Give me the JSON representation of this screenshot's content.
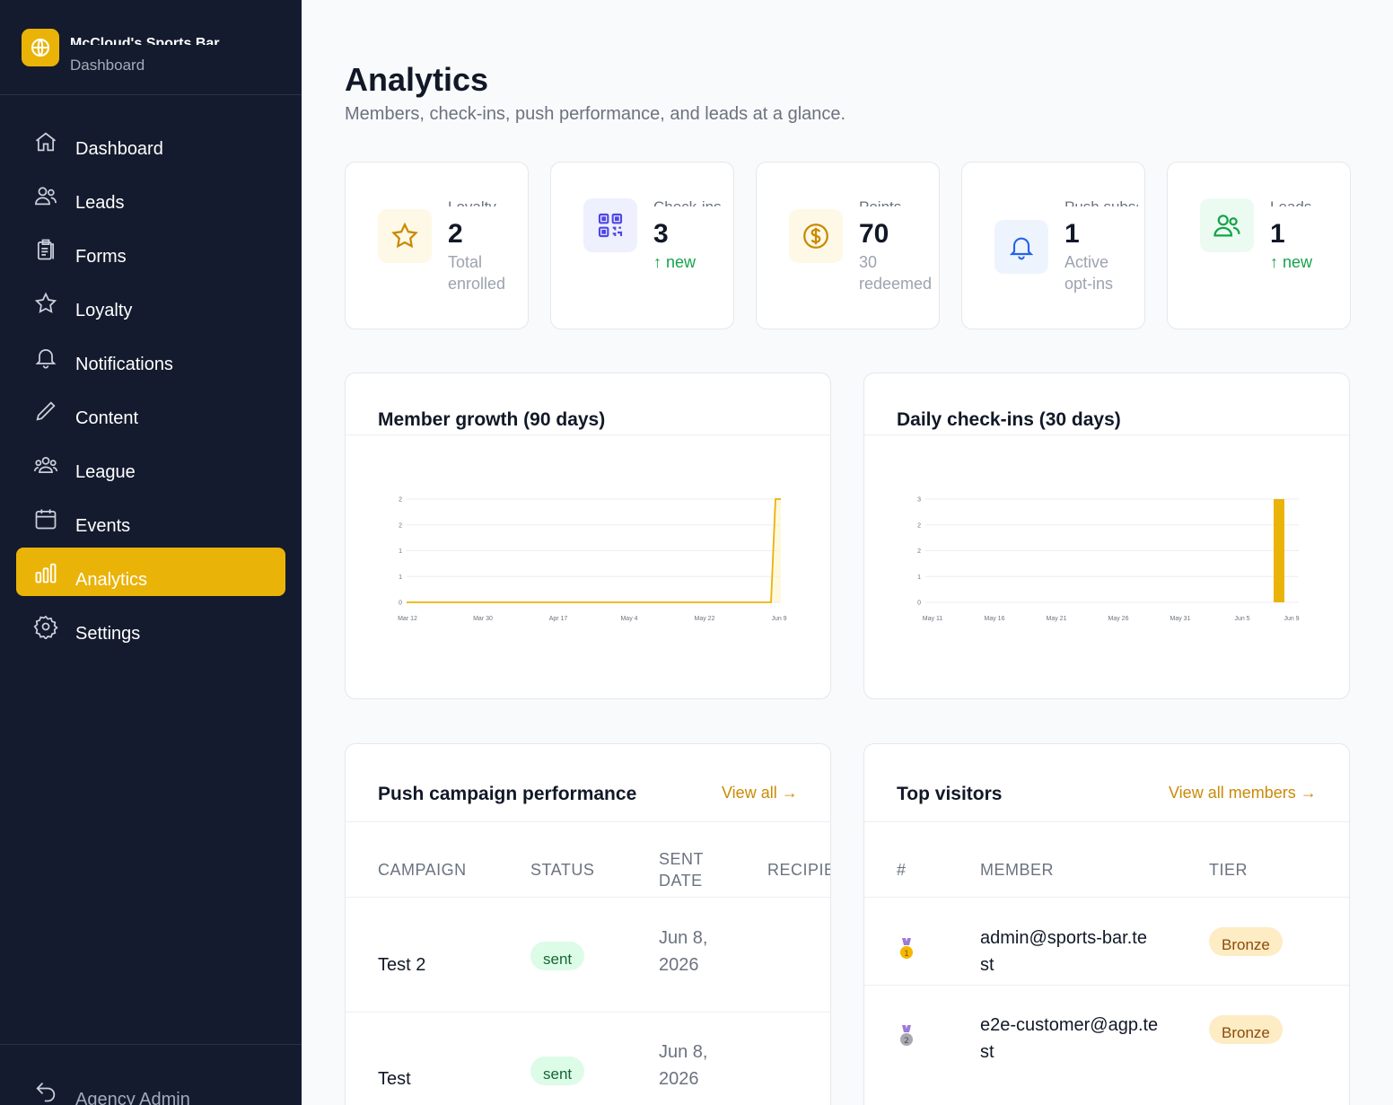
{
  "brand": {
    "name": "McCloud's Sports Bar",
    "subtitle": "Dashboard",
    "logo_icon": "globe-icon"
  },
  "nav": [
    {
      "label": "Dashboard",
      "icon": "home-icon",
      "active": false
    },
    {
      "label": "Leads",
      "icon": "users-icon",
      "active": false
    },
    {
      "label": "Forms",
      "icon": "clipboard-icon",
      "active": false
    },
    {
      "label": "Loyalty",
      "icon": "star-icon",
      "active": false
    },
    {
      "label": "Notifications",
      "icon": "bell-icon",
      "active": false
    },
    {
      "label": "Content",
      "icon": "pencil-icon",
      "active": false
    },
    {
      "label": "League",
      "icon": "group-icon",
      "active": false
    },
    {
      "label": "Events",
      "icon": "calendar-icon",
      "active": false
    },
    {
      "label": "Analytics",
      "icon": "bar-chart-icon",
      "active": true
    },
    {
      "label": "Settings",
      "icon": "gear-icon",
      "active": false
    }
  ],
  "footer": {
    "label": "Agency Admin",
    "icon": "back-arrow-icon"
  },
  "page": {
    "title": "Analytics",
    "subtitle": "Members, check-ins, push performance, and leads at a glance."
  },
  "stats": [
    {
      "label": "Loyalty",
      "value": "2",
      "sub": "Total enrolled",
      "icon": "star-icon",
      "color": "#ca8a04",
      "bg": "#fef9e7"
    },
    {
      "label": "Check-ins",
      "value": "3",
      "sub": "↑ new",
      "icon": "qr-code-icon",
      "color": "#4f46e5",
      "bg": "#eef0fe"
    },
    {
      "label": "Points",
      "value": "70",
      "sub": "30 redeemed",
      "icon": "dollar-icon",
      "color": "#ca8a04",
      "bg": "#fef9e7"
    },
    {
      "label": "Push subscribers",
      "value": "1",
      "sub": "Active opt-ins",
      "icon": "bell-icon",
      "color": "#2563eb",
      "bg": "#eef4fe"
    },
    {
      "label": "Leads",
      "value": "1",
      "sub": "↑ new",
      "icon": "users-icon",
      "color": "#16a34a",
      "bg": "#ecfbf1"
    }
  ],
  "chart_data": [
    {
      "type": "line",
      "title": "Member growth (90 days)",
      "x": [
        "Mar 12",
        "Mar 30",
        "Apr 17",
        "May 4",
        "May 22",
        "Jun 9"
      ],
      "series": [
        {
          "values": [
            0,
            0,
            0,
            0,
            0,
            2
          ]
        }
      ],
      "ytick_labels": [
        "0",
        "1",
        "1",
        "2",
        "2"
      ],
      "ylim": [
        0,
        2
      ],
      "color": "#eab308",
      "grid": true
    },
    {
      "type": "bar",
      "title": "Daily check-ins (30 days)",
      "x": [
        "May 11",
        "May 16",
        "May 21",
        "May 26",
        "May 31",
        "Jun 5",
        "Jun 9"
      ],
      "values": [
        0,
        0,
        0,
        0,
        0,
        0,
        3
      ],
      "ytick_labels": [
        "0",
        "1",
        "2",
        "2",
        "3"
      ],
      "ylim": [
        0,
        3
      ],
      "color": "#eab308",
      "grid": true
    }
  ],
  "push": {
    "title": "Push campaign performance",
    "view_all": "View all →",
    "columns": [
      "CAMPAIGN",
      "STATUS",
      "SENT DATE",
      "RECIPIENTS"
    ],
    "rows": [
      {
        "campaign": "Test 2",
        "status": "sent",
        "date": "Jun 8, 2026"
      },
      {
        "campaign": "Test",
        "status": "sent",
        "date": "Jun 8, 2026"
      }
    ]
  },
  "visitors": {
    "title": "Top visitors",
    "view_all": "View all members →",
    "columns": [
      "#",
      "MEMBER",
      "TIER"
    ],
    "rows": [
      {
        "rank_icon": "gold-medal-icon",
        "member": "admin@sports-bar.test",
        "tier": "Bronze"
      },
      {
        "rank_icon": "silver-medal-icon",
        "member": "e2e-customer@agp.test",
        "tier": "Bronze"
      }
    ]
  }
}
